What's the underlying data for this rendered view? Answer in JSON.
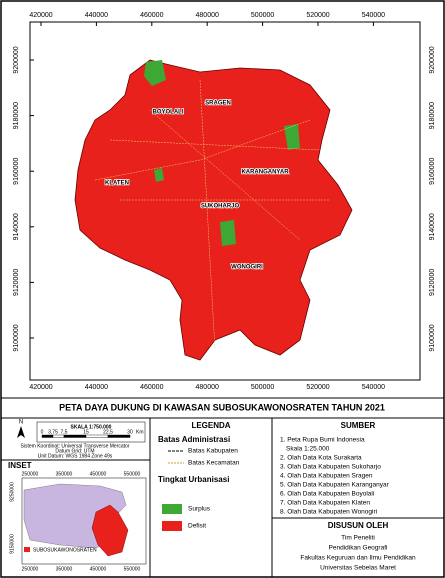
{
  "map": {
    "xticks": [
      420000,
      440000,
      460000,
      480000,
      500000,
      520000,
      540000
    ],
    "yticks": [
      9200000,
      9180000,
      9160000,
      9140000,
      9120000,
      9100000
    ],
    "regions": [
      "BOYOLALI",
      "SRAGEN",
      "KARANGANYAR",
      "KLATEN",
      "SUKOHARJO",
      "WONOGIRI"
    ]
  },
  "title": "PETA DAYA DUKUNG DI KAWASAN SUBOSUKAWONOSRATEN TAHUN 2021",
  "north": "N",
  "scale": {
    "label": "SKALA 1:750.000",
    "ticks": [
      "0",
      "3,75",
      "7,5",
      "15",
      "22,5",
      "30"
    ],
    "unit": "Km",
    "notes": [
      "Sistem Koordinat: Universal Transverse Mercator",
      "Datum Grid: UTM",
      "Unit Datum: WGS 1984 Zone 49s"
    ]
  },
  "inset": {
    "title": "INSET",
    "xticks": [
      250000,
      350000,
      450000,
      550000
    ],
    "yticks": [
      9250000,
      9150000
    ],
    "label": "SUBOSUKAWONOSRATEN"
  },
  "legend": {
    "title": "LEGENDA",
    "admin_title": "Batas Administrasi",
    "admin": [
      "Batas Kabupaten",
      "Batas Kecamatan"
    ],
    "urban_title": "Tingkat Urbanisasi",
    "urban": [
      "Surplus",
      "Defisit"
    ]
  },
  "sources": {
    "title": "SUMBER",
    "items": [
      "1. Peta Rupa Bumi Indonesia",
      "Skala 1:25.000",
      "2. Olah Data Kota Surakarta",
      "3. Olah Data Kabupaten Sukoharjo",
      "4. Olah Data Kabupaten Sragen",
      "5. Olah Data Kabupaten Karanganyar",
      "6. Olah Data Kabupaten Boyolali",
      "7. Olah Data Kabupaten Klaten",
      "8. Olah Data Kabupaten Wonogiri"
    ]
  },
  "author": {
    "title": "DISUSUN OLEH",
    "lines": [
      "Tim Peneliti",
      "Pendidikan Geografi",
      "Fakultas Keguruan dan Ilmu Pendidikan",
      "Universitas Sebelas Maret"
    ]
  }
}
